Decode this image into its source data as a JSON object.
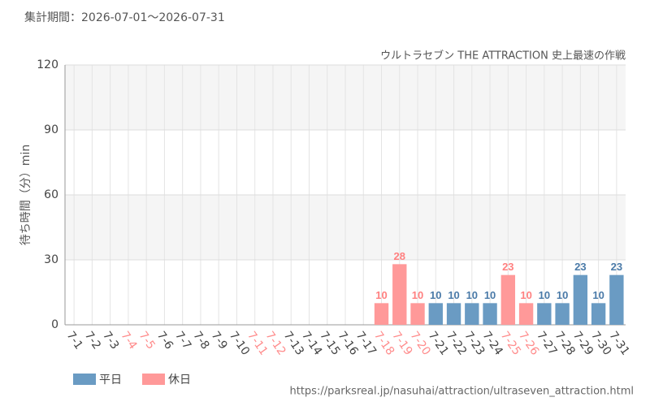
{
  "chart_data": {
    "type": "bar",
    "stacked": false,
    "period": "集計期間：2026-07-01～2026-07-31",
    "title": "ウルトラセブン THE ATTRACTION 史上最速の作戦",
    "y_label": "待ち時間（分）min",
    "source": "https://parksreal.jp/nasuhai/attraction/ultraseven_attraction.html",
    "categories": [
      "7-1",
      "7-2",
      "7-3",
      "7-4",
      "7-5",
      "7-6",
      "7-7",
      "7-8",
      "7-9",
      "7-10",
      "7-11",
      "7-12",
      "7-13",
      "7-14",
      "7-15",
      "7-16",
      "7-17",
      "7-18",
      "7-19",
      "7-20",
      "7-21",
      "7-22",
      "7-23",
      "7-24",
      "7-25",
      "7-26",
      "7-27",
      "7-28",
      "7-29",
      "7-30",
      "7-31"
    ],
    "category_label_colors": [
      "#444",
      "#444",
      "#444",
      "#ff8c8c",
      "#ff8c8c",
      "#444",
      "#444",
      "#444",
      "#444",
      "#444",
      "#ff8c8c",
      "#ff8c8c",
      "#444",
      "#444",
      "#444",
      "#444",
      "#444",
      "#ff8c8c",
      "#ff8c8c",
      "#ff8c8c",
      "#444",
      "#444",
      "#444",
      "#444",
      "#ff8c8c",
      "#ff8c8c",
      "#444",
      "#444",
      "#444",
      "#444",
      "#444"
    ],
    "series": [
      {
        "name": "平日",
        "color": "#6a9bc3",
        "label_color": "#4a7aa8",
        "values": [
          null,
          null,
          null,
          null,
          null,
          null,
          null,
          null,
          null,
          null,
          null,
          null,
          null,
          null,
          null,
          null,
          null,
          null,
          null,
          null,
          10,
          10,
          10,
          10,
          null,
          null,
          10,
          10,
          23,
          10,
          23
        ]
      },
      {
        "name": "休日",
        "color": "#ff9999",
        "label_color": "#ff8080",
        "values": [
          null,
          null,
          null,
          null,
          null,
          null,
          null,
          null,
          null,
          null,
          null,
          null,
          null,
          null,
          null,
          null,
          null,
          10,
          28,
          10,
          null,
          null,
          null,
          null,
          23,
          10,
          null,
          null,
          null,
          null,
          null
        ]
      }
    ],
    "ylim": [
      0,
      120
    ],
    "yticks": [
      0,
      30,
      60,
      90,
      120
    ],
    "grid": true,
    "band_color": "#f5f5f5"
  }
}
